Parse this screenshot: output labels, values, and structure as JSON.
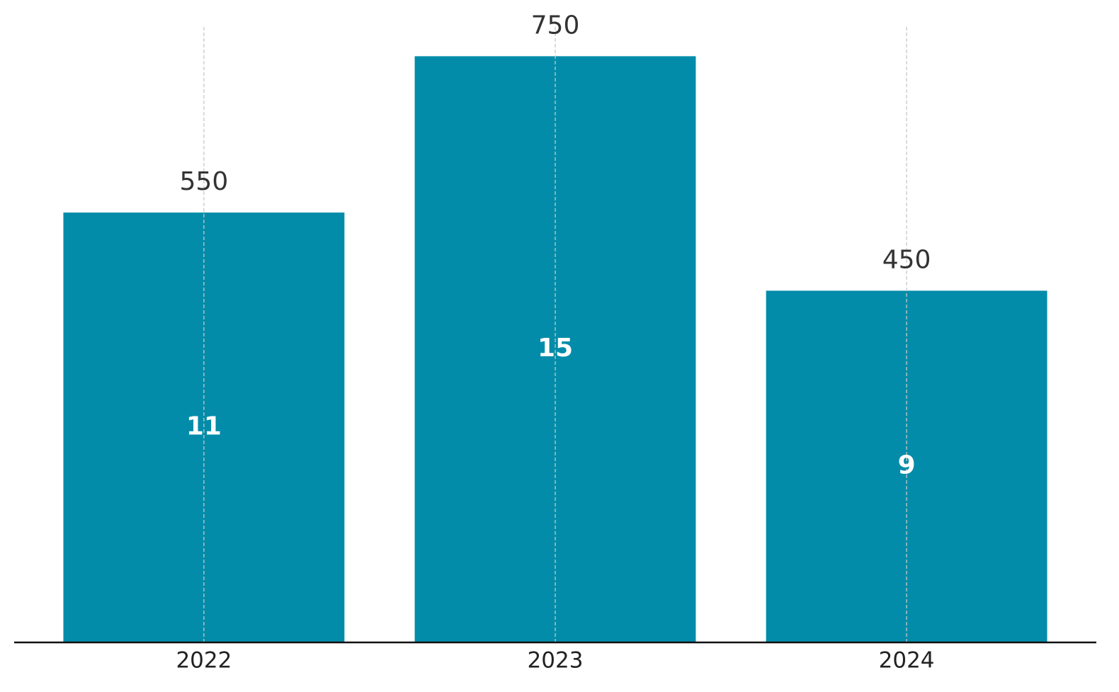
{
  "chart_data": {
    "type": "bar",
    "categories": [
      "2022",
      "2023",
      "2024"
    ],
    "values": [
      550,
      750,
      450
    ],
    "inner_values": [
      11,
      15,
      9
    ],
    "color": "#028ca9",
    "ylim": [
      0,
      787.5
    ],
    "grid": true
  }
}
